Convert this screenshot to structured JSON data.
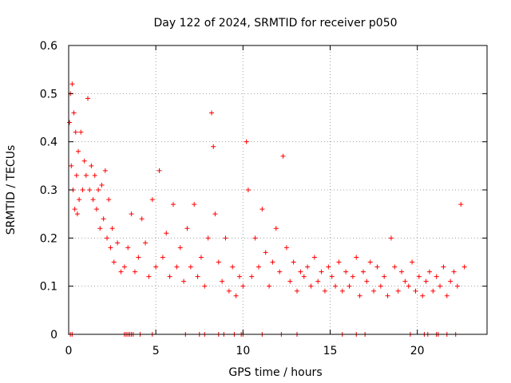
{
  "chart_data": {
    "type": "scatter",
    "title": "Day 122 of 2024, SRMTID for receiver p050",
    "xlabel": "GPS time / hours",
    "ylabel": "SRMTID / TECUs",
    "xlim": [
      0,
      24
    ],
    "ylim": [
      0,
      0.6
    ],
    "xticks": [
      0,
      5,
      10,
      15,
      20
    ],
    "yticks": [
      0,
      0.1,
      0.2,
      0.3,
      0.4,
      0.5,
      0.6
    ],
    "xtick_labels": [
      "0",
      "5",
      "10",
      "15",
      "20"
    ],
    "ytick_labels": [
      "0",
      "0.1",
      "0.2",
      "0.3",
      "0.4",
      "0.5",
      "0.6"
    ],
    "grid": true,
    "marker": "+",
    "marker_color": "#ff0000",
    "series": [
      {
        "name": "SRMTID",
        "x": [
          0.05,
          0.1,
          0.15,
          0.2,
          0.25,
          0.3,
          0.35,
          0.4,
          0.45,
          0.5,
          0.55,
          0.6,
          0.7,
          0.8,
          0.9,
          1.0,
          1.1,
          1.2,
          1.3,
          1.4,
          1.5,
          1.6,
          1.7,
          1.8,
          1.9,
          2.0,
          2.1,
          2.2,
          2.3,
          2.4,
          2.5,
          2.6,
          2.8,
          3.0,
          3.2,
          3.4,
          3.6,
          3.8,
          4.0,
          4.2,
          4.4,
          4.6,
          4.8,
          5.0,
          5.2,
          5.4,
          5.6,
          5.8,
          6.0,
          6.2,
          6.4,
          6.6,
          6.8,
          7.0,
          7.2,
          7.4,
          7.6,
          7.8,
          8.0,
          8.2,
          8.3,
          8.4,
          8.6,
          8.8,
          9.0,
          9.2,
          9.4,
          9.6,
          9.8,
          10.0,
          10.2,
          10.3,
          10.5,
          10.7,
          10.9,
          11.1,
          11.3,
          11.5,
          11.7,
          11.9,
          12.1,
          12.3,
          12.5,
          12.7,
          12.9,
          13.1,
          13.3,
          13.5,
          13.7,
          13.9,
          14.1,
          14.3,
          14.5,
          14.7,
          14.9,
          15.1,
          15.3,
          15.5,
          15.7,
          15.9,
          16.1,
          16.3,
          16.5,
          16.7,
          16.9,
          17.1,
          17.3,
          17.5,
          17.7,
          17.9,
          18.1,
          18.3,
          18.5,
          18.7,
          18.9,
          19.1,
          19.3,
          19.5,
          19.7,
          19.9,
          20.1,
          20.3,
          20.5,
          20.7,
          20.9,
          21.1,
          21.3,
          21.5,
          21.7,
          21.9,
          22.1,
          22.3,
          22.5,
          22.7
        ],
        "y": [
          0.44,
          0.5,
          0.35,
          0.52,
          0.3,
          0.46,
          0.26,
          0.42,
          0.33,
          0.25,
          0.38,
          0.28,
          0.42,
          0.3,
          0.36,
          0.33,
          0.49,
          0.3,
          0.35,
          0.28,
          0.33,
          0.26,
          0.3,
          0.22,
          0.31,
          0.24,
          0.34,
          0.2,
          0.28,
          0.18,
          0.22,
          0.15,
          0.19,
          0.13,
          0.14,
          0.18,
          0.25,
          0.13,
          0.16,
          0.24,
          0.19,
          0.12,
          0.28,
          0.14,
          0.34,
          0.16,
          0.21,
          0.12,
          0.27,
          0.14,
          0.18,
          0.11,
          0.22,
          0.14,
          0.27,
          0.12,
          0.16,
          0.1,
          0.2,
          0.46,
          0.39,
          0.25,
          0.15,
          0.11,
          0.2,
          0.09,
          0.14,
          0.08,
          0.12,
          0.1,
          0.4,
          0.3,
          0.12,
          0.2,
          0.14,
          0.26,
          0.17,
          0.1,
          0.15,
          0.22,
          0.13,
          0.37,
          0.18,
          0.11,
          0.15,
          0.09,
          0.13,
          0.12,
          0.14,
          0.1,
          0.16,
          0.11,
          0.13,
          0.09,
          0.14,
          0.12,
          0.1,
          0.15,
          0.09,
          0.13,
          0.1,
          0.12,
          0.16,
          0.08,
          0.13,
          0.11,
          0.15,
          0.09,
          0.14,
          0.1,
          0.12,
          0.08,
          0.2,
          0.14,
          0.09,
          0.13,
          0.11,
          0.1,
          0.15,
          0.09,
          0.12,
          0.08,
          0.11,
          0.13,
          0.09,
          0.12,
          0.1,
          0.14,
          0.08,
          0.11,
          0.13,
          0.1,
          0.27,
          0.14
        ],
        "zero_x": [
          0.1,
          0.2,
          3.2,
          3.3,
          3.4,
          3.5,
          3.6,
          3.7,
          4.1,
          4.8,
          6.7,
          7.5,
          7.8,
          8.6,
          8.9,
          9.5,
          9.9,
          10.0,
          11.1,
          12.2,
          13.1,
          15.7,
          16.5,
          17.0,
          19.6,
          20.4,
          20.6,
          21.1,
          21.2,
          21.7,
          22.2
        ]
      }
    ]
  }
}
